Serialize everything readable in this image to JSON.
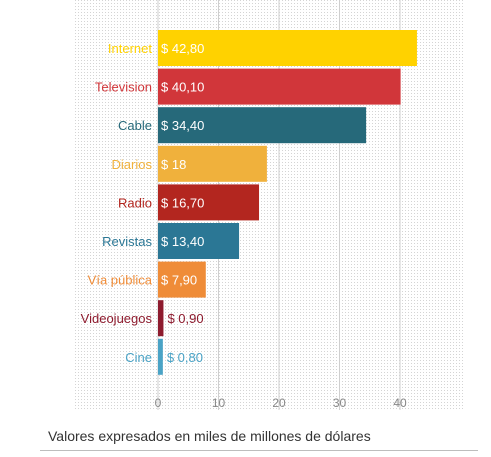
{
  "chart_data": {
    "type": "bar",
    "orientation": "horizontal",
    "categories": [
      "Internet",
      "Television",
      "Cable",
      "Diarios",
      "Radio",
      "Revistas",
      "Vía pública",
      "Videojuegos",
      "Cine"
    ],
    "values": [
      42.8,
      40.1,
      34.4,
      18,
      16.7,
      13.4,
      7.9,
      0.9,
      0.8
    ],
    "value_labels": [
      "$ 42,80",
      "$ 40,10",
      "$ 34,40",
      "$ 18",
      "$ 16,70",
      "$ 13,40",
      "$ 7,90",
      "$ 0,90",
      "$ 0,80"
    ],
    "colors": [
      "#ffd200",
      "#d1363a",
      "#26697a",
      "#f0b13c",
      "#b3261f",
      "#2b7795",
      "#ef8c38",
      "#8e1b2e",
      "#4aa3c6"
    ],
    "x_ticks": [
      0,
      10,
      20,
      30,
      40
    ],
    "xlim": [
      0,
      50
    ],
    "grid": true,
    "xlabel": "",
    "ylabel": "",
    "title": ""
  },
  "caption": "Valores expresados en miles de millones de dólares"
}
